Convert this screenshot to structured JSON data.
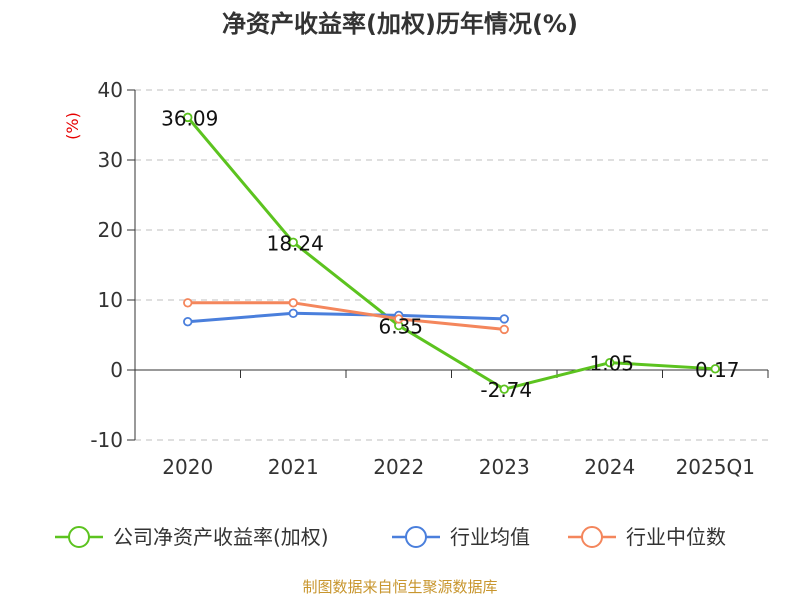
{
  "chart_data": {
    "type": "line",
    "title": "净资产收益率(加权)历年情况(%)",
    "ylabel": "(%)",
    "xlabel": "",
    "categories": [
      "2020",
      "2021",
      "2022",
      "2023",
      "2024",
      "2025Q1"
    ],
    "ylim": [
      -10,
      40
    ],
    "yticks": [
      -10,
      0,
      10,
      20,
      30,
      40
    ],
    "grid": true,
    "legend_position": "bottom",
    "series": [
      {
        "name": "公司净资产收益率(加权)",
        "color": "#5cc31f",
        "values": [
          36.09,
          18.24,
          6.35,
          -2.74,
          1.05,
          0.17
        ],
        "labels": [
          "36.09",
          "18.24",
          "6.35",
          "-2.74",
          "1.05",
          "0.17"
        ]
      },
      {
        "name": "行业均值",
        "color": "#4a7fdc",
        "values": [
          6.9,
          8.1,
          7.8,
          7.3,
          null,
          null
        ]
      },
      {
        "name": "行业中位数",
        "color": "#f4865c",
        "values": [
          9.6,
          9.6,
          7.3,
          5.8,
          null,
          null
        ]
      }
    ]
  },
  "source": "制图数据来自恒生聚源数据库"
}
